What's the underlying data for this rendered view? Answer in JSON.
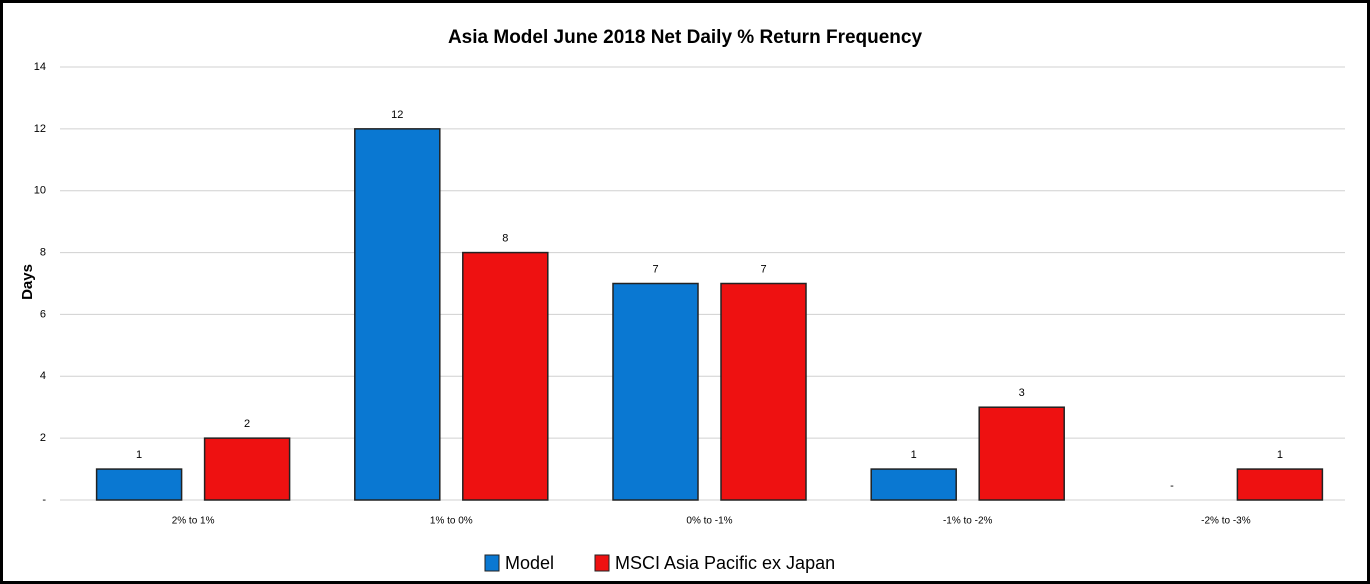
{
  "chart_data": {
    "type": "bar",
    "title": "Asia Model June 2018 Net Daily % Return Frequency",
    "y_label": "Days",
    "categories": [
      "2% to 1%",
      "1% to 0%",
      "0% to -1%",
      "-1% to -2%",
      "-2% to -3%"
    ],
    "series": [
      {
        "name": "Model",
        "color": "#0a78d2",
        "values": [
          1,
          12,
          7,
          1,
          0
        ],
        "value_labels": [
          "1",
          "12",
          "7",
          "1",
          "-"
        ]
      },
      {
        "name": "MSCI Asia Pacific ex Japan",
        "color": "#ee1111",
        "values": [
          2,
          8,
          7,
          3,
          1
        ]
      }
    ],
    "ylim": [
      0,
      14
    ],
    "yticks": [
      {
        "value": 0,
        "label": "-"
      },
      2,
      4,
      6,
      8,
      10,
      12,
      14
    ],
    "grid": true,
    "legend": "bottom"
  }
}
